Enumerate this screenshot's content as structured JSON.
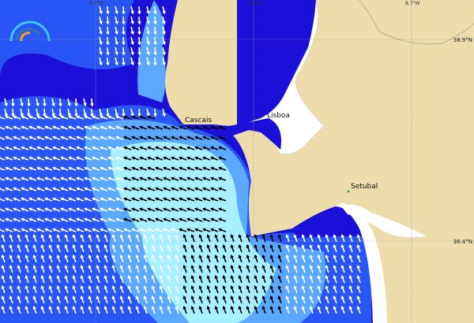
{
  "map": {
    "longitude_labels": [
      "9.7°W",
      "9.2°W",
      "8.7°W"
    ],
    "latitude_labels": [
      "38.9°N",
      "38.4°N"
    ],
    "places": [
      "Cascais",
      "Lisboa",
      "Setubal"
    ],
    "colors": {
      "land": "#eedcaa",
      "ocean_deep": "#1a10d8",
      "ocean": "#2a55f5",
      "ocean_light": "#5aa8ff",
      "ocean_lighter": "#a8f0ff",
      "arrow_light": "#ffffff",
      "arrow_dark": "#000000",
      "estuary": "#ffffff"
    },
    "legend_icon": "wave-gauge-icon",
    "arrow_icon": "direction-arrow-icon"
  }
}
